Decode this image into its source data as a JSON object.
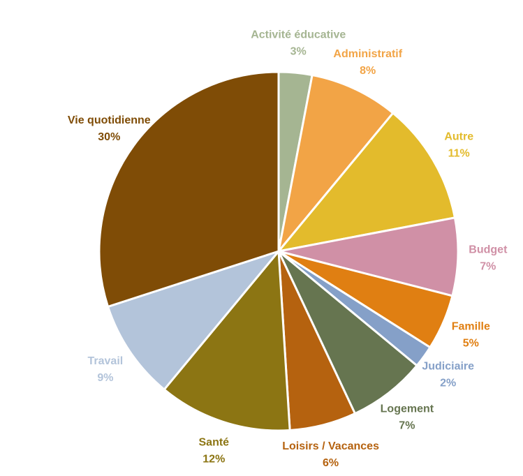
{
  "chart_data": {
    "type": "pie",
    "categories": [
      "Activité éducative",
      "Administratif",
      "Autre",
      "Budget",
      "Famille",
      "Judiciaire",
      "Logement",
      "Loisirs / Vacances",
      "Santé",
      "Travail",
      "Vie quotidienne"
    ],
    "values": [
      3,
      8,
      11,
      7,
      5,
      2,
      7,
      6,
      12,
      9,
      30
    ],
    "value_labels": [
      "3%",
      "8%",
      "11%",
      "7%",
      "5%",
      "2%",
      "7%",
      "6%",
      "12%",
      "9%",
      "30%"
    ],
    "colors": [
      "#a5b592",
      "#f2a446",
      "#e3bb2c",
      "#d090a6",
      "#e07f12",
      "#85a0c8",
      "#667550",
      "#b5620f",
      "#8c7513",
      "#b3c4da",
      "#7f4c06"
    ]
  }
}
